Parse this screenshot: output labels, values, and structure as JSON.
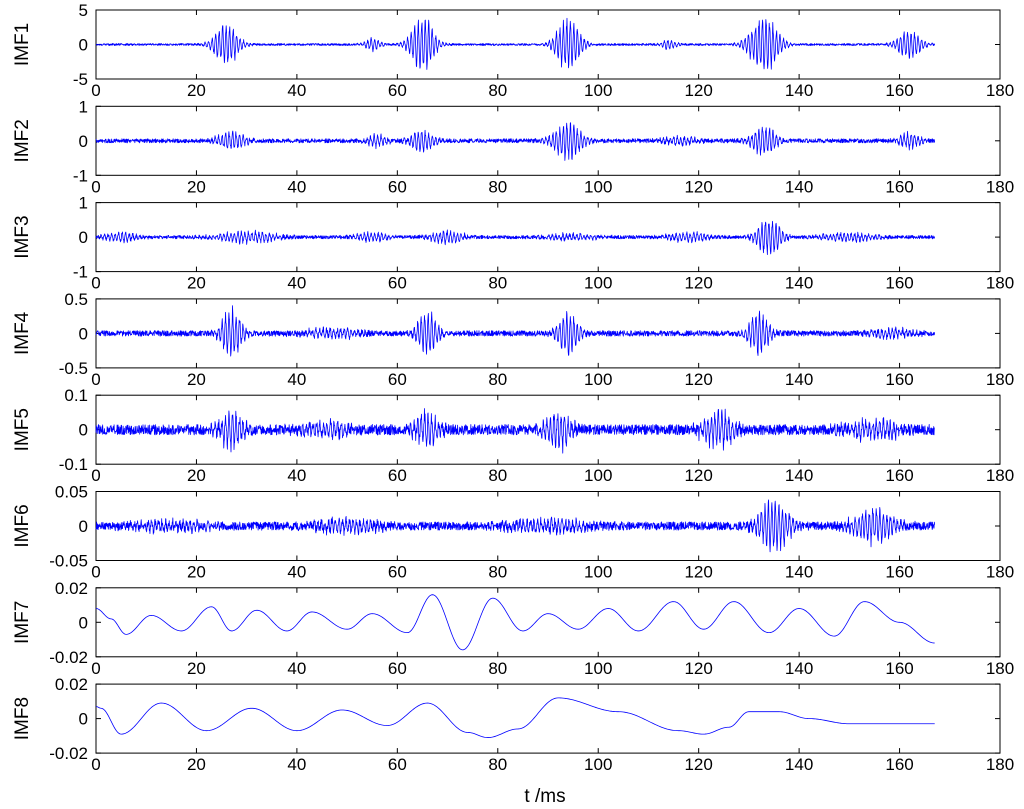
{
  "figure": {
    "xlabel": "t /ms",
    "trace_color": "#0000ff"
  },
  "chart_data": [
    {
      "type": "line",
      "ylabel": "IMF1",
      "xlim": [
        0,
        180
      ],
      "ylim": [
        -5,
        5
      ],
      "xticks": [
        0,
        20,
        40,
        60,
        80,
        100,
        120,
        140,
        160,
        180
      ],
      "xtick_labels": [
        "0",
        "20",
        "40",
        "60",
        "80",
        "100",
        "120",
        "140",
        "160",
        "180"
      ],
      "yticks": [
        5,
        0,
        -5
      ],
      "ytick_labels": [
        "5",
        "0",
        "-5"
      ],
      "series": [
        {
          "x_range": [
            0,
            167
          ],
          "baseline_noise": 0.15,
          "bursts": [
            [
              26,
              3.3,
              6
            ],
            [
              55,
              1.0,
              4
            ],
            [
              65,
              4.3,
              6
            ],
            [
              94,
              4.0,
              6
            ],
            [
              114,
              0.8,
              4
            ],
            [
              133,
              4.5,
              7
            ],
            [
              162,
              2.3,
              6
            ]
          ]
        }
      ]
    },
    {
      "type": "line",
      "ylabel": "IMF2",
      "xlim": [
        0,
        180
      ],
      "ylim": [
        -1,
        1
      ],
      "xticks": [
        0,
        20,
        40,
        60,
        80,
        100,
        120,
        140,
        160,
        180
      ],
      "xtick_labels": [
        "0",
        "20",
        "40",
        "60",
        "80",
        "100",
        "120",
        "140",
        "160",
        "180"
      ],
      "yticks": [
        1,
        0,
        -1
      ],
      "ytick_labels": [
        "1",
        "0",
        "-1"
      ],
      "series": [
        {
          "x_range": [
            0,
            167
          ],
          "baseline_noise": 0.06,
          "bursts": [
            [
              27,
              0.3,
              7
            ],
            [
              56,
              0.2,
              5
            ],
            [
              65,
              0.35,
              6
            ],
            [
              94,
              0.6,
              7
            ],
            [
              116,
              0.15,
              8
            ],
            [
              133,
              0.45,
              6
            ],
            [
              162,
              0.25,
              5
            ]
          ]
        }
      ]
    },
    {
      "type": "line",
      "ylabel": "IMF3",
      "xlim": [
        0,
        180
      ],
      "ylim": [
        -1,
        1
      ],
      "xticks": [
        0,
        20,
        40,
        60,
        80,
        100,
        120,
        140,
        160,
        180
      ],
      "xtick_labels": [
        "0",
        "20",
        "40",
        "60",
        "80",
        "100",
        "120",
        "140",
        "160",
        "180"
      ],
      "yticks": [
        1,
        0,
        -1
      ],
      "ytick_labels": [
        "1",
        "0",
        "-1"
      ],
      "series": [
        {
          "x_range": [
            0,
            167
          ],
          "baseline_noise": 0.05,
          "bursts": [
            [
              5,
              0.15,
              8
            ],
            [
              30,
              0.2,
              14
            ],
            [
              55,
              0.15,
              8
            ],
            [
              70,
              0.2,
              8
            ],
            [
              95,
              0.1,
              12
            ],
            [
              118,
              0.15,
              10
            ],
            [
              134,
              0.6,
              6
            ],
            [
              150,
              0.15,
              12
            ]
          ]
        }
      ]
    },
    {
      "type": "line",
      "ylabel": "IMF4",
      "xlim": [
        0,
        180
      ],
      "ylim": [
        -0.5,
        0.5
      ],
      "xticks": [
        0,
        20,
        40,
        60,
        80,
        100,
        120,
        140,
        160,
        180
      ],
      "xtick_labels": [
        "0",
        "20",
        "40",
        "60",
        "80",
        "100",
        "120",
        "140",
        "160",
        "180"
      ],
      "yticks": [
        0.5,
        0,
        -0.5
      ],
      "ytick_labels": [
        "0.5",
        "0",
        "-0.5"
      ],
      "series": [
        {
          "x_range": [
            0,
            167
          ],
          "baseline_noise": 0.04,
          "bursts": [
            [
              27,
              0.4,
              5
            ],
            [
              47,
              0.08,
              14
            ],
            [
              66,
              0.35,
              5
            ],
            [
              94,
              0.35,
              5
            ],
            [
              132,
              0.35,
              5
            ],
            [
              158,
              0.08,
              10
            ]
          ]
        }
      ]
    },
    {
      "type": "line",
      "ylabel": "IMF5",
      "xlim": [
        0,
        180
      ],
      "ylim": [
        -0.1,
        0.1
      ],
      "xticks": [
        0,
        20,
        40,
        60,
        80,
        100,
        120,
        140,
        160,
        180
      ],
      "xtick_labels": [
        "0",
        "20",
        "40",
        "60",
        "80",
        "100",
        "120",
        "140",
        "160",
        "180"
      ],
      "yticks": [
        0.1,
        0,
        -0.1
      ],
      "ytick_labels": [
        "0.1",
        "0",
        "-0.1"
      ],
      "series": [
        {
          "x_range": [
            0,
            167
          ],
          "baseline_noise": 0.015,
          "bursts": [
            [
              27,
              0.06,
              6
            ],
            [
              46,
              0.025,
              12
            ],
            [
              66,
              0.06,
              6
            ],
            [
              92,
              0.065,
              6
            ],
            [
              124,
              0.06,
              8
            ],
            [
              155,
              0.03,
              14
            ]
          ]
        }
      ]
    },
    {
      "type": "line",
      "ylabel": "IMF6",
      "xlim": [
        0,
        180
      ],
      "ylim": [
        -0.05,
        0.05
      ],
      "xticks": [
        0,
        20,
        40,
        60,
        80,
        100,
        120,
        140,
        160,
        180
      ],
      "xtick_labels": [
        "0",
        "20",
        "40",
        "60",
        "80",
        "100",
        "120",
        "140",
        "160",
        "180"
      ],
      "yticks": [
        0.05,
        0,
        -0.05
      ],
      "ytick_labels": [
        "0.05",
        "0",
        "-0.05"
      ],
      "series": [
        {
          "x_range": [
            0,
            167
          ],
          "baseline_noise": 0.006,
          "bursts": [
            [
              15,
              0.008,
              20
            ],
            [
              50,
              0.012,
              15
            ],
            [
              90,
              0.01,
              20
            ],
            [
              135,
              0.04,
              8
            ],
            [
              155,
              0.028,
              10
            ]
          ]
        }
      ]
    },
    {
      "type": "line",
      "ylabel": "IMF7",
      "xlim": [
        0,
        180
      ],
      "ylim": [
        -0.02,
        0.02
      ],
      "xticks": [
        0,
        20,
        40,
        60,
        80,
        100,
        120,
        140,
        160,
        180
      ],
      "xtick_labels": [
        "0",
        "20",
        "40",
        "60",
        "80",
        "100",
        "120",
        "140",
        "160",
        "180"
      ],
      "yticks": [
        0.02,
        0,
        -0.02
      ],
      "ytick_labels": [
        "0.02",
        "0",
        "-0.02"
      ],
      "series": [
        {
          "x": [
            0,
            3,
            6,
            11,
            17,
            23,
            27,
            32,
            38,
            43,
            50,
            55,
            62,
            67,
            73,
            79,
            85,
            90,
            96,
            102,
            108,
            115,
            121,
            127,
            134,
            140,
            147,
            153,
            160,
            167
          ],
          "y": [
            0.008,
            0.002,
            -0.007,
            0.004,
            -0.005,
            0.009,
            -0.005,
            0.007,
            -0.005,
            0.006,
            -0.004,
            0.005,
            -0.006,
            0.016,
            -0.016,
            0.014,
            -0.005,
            0.005,
            -0.004,
            0.008,
            -0.005,
            0.012,
            -0.004,
            0.012,
            -0.006,
            0.008,
            -0.008,
            0.012,
            0.0,
            -0.012
          ]
        }
      ]
    },
    {
      "type": "line",
      "ylabel": "IMF8",
      "xlim": [
        0,
        180
      ],
      "ylim": [
        -0.02,
        0.02
      ],
      "xticks": [
        0,
        20,
        40,
        60,
        80,
        100,
        120,
        140,
        160,
        180
      ],
      "xtick_labels": [
        "0",
        "20",
        "40",
        "60",
        "80",
        "100",
        "120",
        "140",
        "160",
        "180"
      ],
      "yticks": [
        0.02,
        0,
        -0.02
      ],
      "ytick_labels": [
        "0.02",
        "0",
        "-0.02"
      ],
      "series": [
        {
          "x": [
            0,
            1,
            5,
            13,
            22,
            31,
            40,
            49,
            58,
            66,
            74,
            78,
            84,
            92,
            104,
            116,
            121,
            126,
            130,
            136,
            142,
            150,
            160,
            167
          ],
          "y": [
            0.007,
            0.006,
            -0.009,
            0.009,
            -0.007,
            0.006,
            -0.007,
            0.005,
            -0.004,
            0.009,
            -0.008,
            -0.011,
            -0.006,
            0.012,
            0.004,
            -0.007,
            -0.009,
            -0.005,
            0.004,
            0.004,
            0.0,
            -0.003,
            -0.003,
            -0.003
          ]
        }
      ]
    }
  ]
}
